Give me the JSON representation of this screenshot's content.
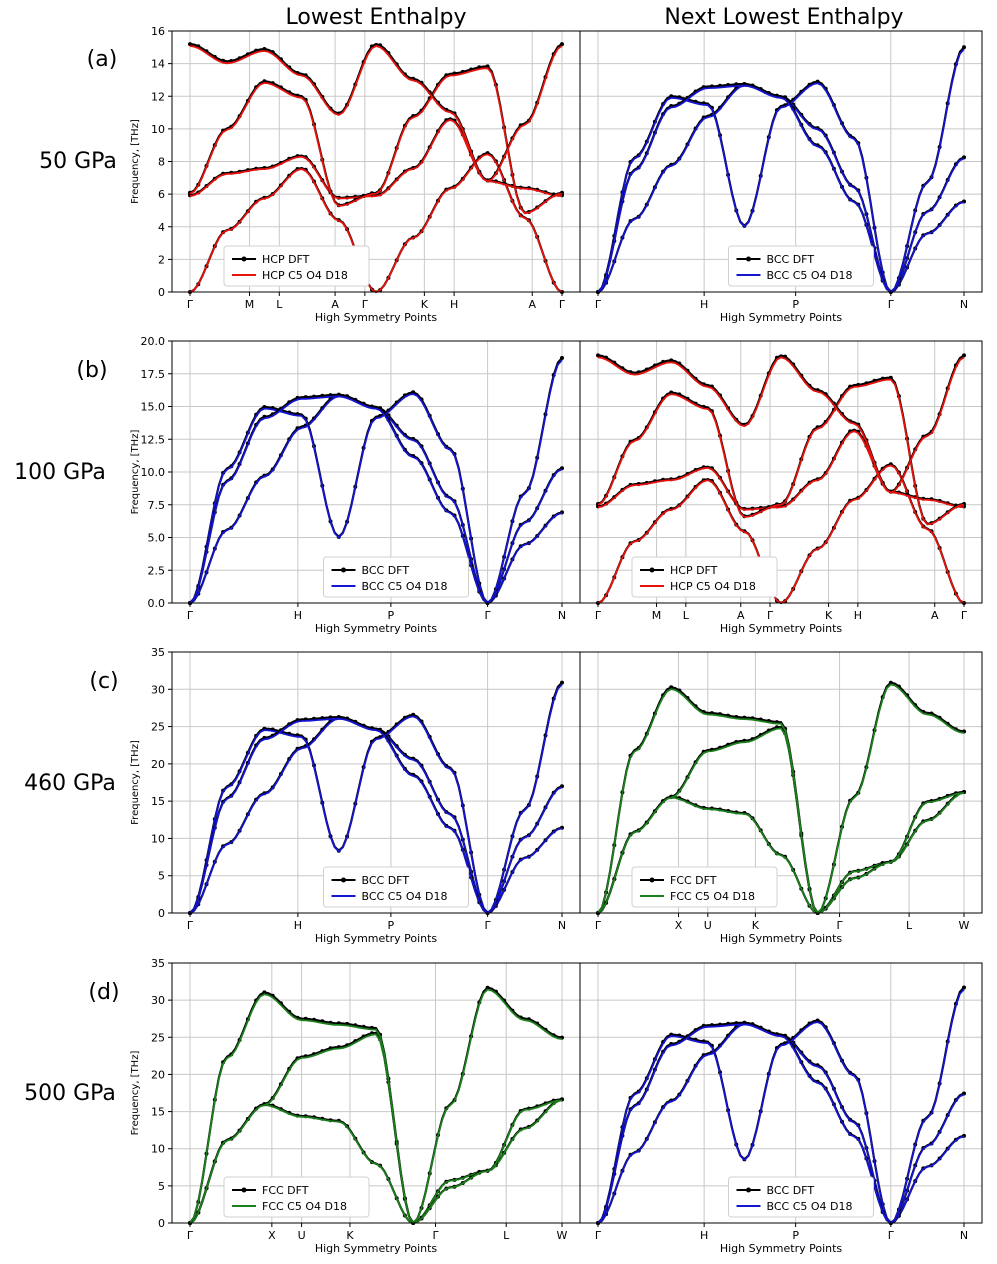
{
  "column_titles": [
    "Lowest Enthalpy",
    "Next Lowest Enthalpy"
  ],
  "rows": [
    {
      "label": "(a)",
      "pressure": "50 GPa"
    },
    {
      "label": "(b)",
      "pressure": "100 GPa"
    },
    {
      "label": "(c)",
      "pressure": "460 GPa"
    },
    {
      "label": "(d)",
      "pressure": "500 GPa"
    }
  ],
  "colors": {
    "HCP": "#e8120c",
    "BCC": "#1414d2",
    "FCC": "#1b7f1b",
    "DFT": "#000000"
  },
  "chart_data": [
    {
      "type": "line",
      "row": 0,
      "col": 0,
      "structure": "HCP",
      "xlabel": "High Symmetry Points",
      "ylabel": "Frequency, [THz]",
      "ylim": [
        0,
        16
      ],
      "yticks": [
        0,
        2,
        4,
        6,
        8,
        10,
        12,
        14,
        16
      ],
      "kpoints": [
        "Γ",
        "M",
        "L",
        "A",
        "Γ",
        "K",
        "H",
        "A",
        "Γ"
      ],
      "kpos": [
        0,
        0.16,
        0.24,
        0.39,
        0.47,
        0.63,
        0.71,
        0.92,
        1.0
      ],
      "legend": [
        "HCP DFT",
        "HCP C5 O4 D18"
      ],
      "legend_loc": "lower-left",
      "branch_shape": "HCP",
      "max_freq": 15.2
    },
    {
      "type": "line",
      "row": 0,
      "col": 1,
      "structure": "BCC",
      "xlabel": "High Symmetry Points",
      "ylabel": "",
      "ylim": [
        0,
        16
      ],
      "yticks": [],
      "kpoints": [
        "Γ",
        "H",
        "P",
        "Γ",
        "N"
      ],
      "kpos": [
        0,
        0.29,
        0.54,
        0.8,
        1.0
      ],
      "legend": [
        "BCC DFT",
        "BCC C5 O4 D18"
      ],
      "legend_loc": "lower-center",
      "branch_shape": "BCC",
      "max_freq": 15.0
    },
    {
      "type": "line",
      "row": 1,
      "col": 0,
      "structure": "BCC",
      "xlabel": "High Symmetry Points",
      "ylabel": "Frequency, [THz]",
      "ylim": [
        0,
        20
      ],
      "yticks": [
        0.0,
        2.5,
        5.0,
        7.5,
        10.0,
        12.5,
        15.0,
        17.5,
        20.0
      ],
      "kpoints": [
        "Γ",
        "H",
        "P",
        "Γ",
        "N"
      ],
      "kpos": [
        0,
        0.29,
        0.54,
        0.8,
        1.0
      ],
      "legend": [
        "BCC DFT",
        "BCC C5 O4 D18"
      ],
      "legend_loc": "lower-center",
      "branch_shape": "BCC",
      "max_freq": 18.7
    },
    {
      "type": "line",
      "row": 1,
      "col": 1,
      "structure": "HCP",
      "xlabel": "High Symmetry Points",
      "ylabel": "",
      "ylim": [
        0,
        20
      ],
      "yticks": [],
      "kpoints": [
        "Γ",
        "M",
        "L",
        "A",
        "Γ",
        "K",
        "H",
        "A",
        "Γ"
      ],
      "kpos": [
        0,
        0.16,
        0.24,
        0.39,
        0.47,
        0.63,
        0.71,
        0.92,
        1.0
      ],
      "legend": [
        "HCP DFT",
        "HCP C5 O4 D18"
      ],
      "legend_loc": "lower-left",
      "branch_shape": "HCP",
      "max_freq": 18.9
    },
    {
      "type": "line",
      "row": 2,
      "col": 0,
      "structure": "BCC",
      "xlabel": "High Symmetry Points",
      "ylabel": "Frequency, [THz]",
      "ylim": [
        0,
        35
      ],
      "yticks": [
        0,
        5,
        10,
        15,
        20,
        25,
        30,
        35
      ],
      "kpoints": [
        "Γ",
        "H",
        "P",
        "Γ",
        "N"
      ],
      "kpos": [
        0,
        0.29,
        0.54,
        0.8,
        1.0
      ],
      "legend": [
        "BCC DFT",
        "BCC C5 O4 D18"
      ],
      "legend_loc": "lower-center",
      "branch_shape": "BCC",
      "max_freq": 30.9
    },
    {
      "type": "line",
      "row": 2,
      "col": 1,
      "structure": "FCC",
      "xlabel": "High Symmetry Points",
      "ylabel": "",
      "ylim": [
        0,
        35
      ],
      "yticks": [],
      "kpoints": [
        "Γ",
        "X",
        "U",
        "K",
        "Γ",
        "L",
        "W"
      ],
      "kpos": [
        0,
        0.22,
        0.3,
        0.43,
        0.66,
        0.85,
        1.0
      ],
      "legend": [
        "FCC DFT",
        "FCC C5 O4 D18"
      ],
      "legend_loc": "lower-left",
      "branch_shape": "FCC",
      "max_freq": 31.2
    },
    {
      "type": "line",
      "row": 3,
      "col": 0,
      "structure": "FCC",
      "xlabel": "High Symmetry Points",
      "ylabel": "Frequency, [THz]",
      "ylim": [
        0,
        35
      ],
      "yticks": [
        0,
        5,
        10,
        15,
        20,
        25,
        30,
        35
      ],
      "kpoints": [
        "Γ",
        "X",
        "U",
        "K",
        "Γ",
        "L",
        "W"
      ],
      "kpos": [
        0,
        0.22,
        0.3,
        0.43,
        0.66,
        0.85,
        1.0
      ],
      "legend": [
        "FCC DFT",
        "FCC C5 O4 D18"
      ],
      "legend_loc": "lower-left",
      "branch_shape": "FCC",
      "max_freq": 32.0
    },
    {
      "type": "line",
      "row": 3,
      "col": 1,
      "structure": "BCC",
      "xlabel": "High Symmetry Points",
      "ylabel": "",
      "ylim": [
        0,
        35
      ],
      "yticks": [],
      "kpoints": [
        "Γ",
        "H",
        "P",
        "Γ",
        "N"
      ],
      "kpos": [
        0,
        0.29,
        0.54,
        0.8,
        1.0
      ],
      "legend": [
        "BCC DFT",
        "BCC C5 O4 D18"
      ],
      "legend_loc": "lower-center",
      "branch_shape": "BCC",
      "max_freq": 31.7
    }
  ],
  "branch_shapes": {
    "BCC": [
      [
        0,
        0.3,
        0.52,
        0.72,
        0.85,
        0.8,
        0.67,
        0.43,
        0,
        0.24,
        0.37
      ],
      [
        0,
        0.55,
        0.8,
        0.77,
        0.27,
        0.76,
        0.86,
        0.63,
        0,
        0.33,
        0.55
      ],
      [
        0,
        0.5,
        0.76,
        0.84,
        0.85,
        0.8,
        0.6,
        0.37,
        0,
        0.45,
        1.0
      ]
    ],
    "HCP": [
      [
        0,
        0.25,
        0.38,
        0.5,
        0.29,
        0,
        0.22,
        0.42,
        0.56,
        0.3,
        0
      ],
      [
        0.39,
        0.48,
        0.5,
        0.55,
        0.38,
        0.39,
        0.5,
        0.7,
        0.45,
        0.42,
        0.39
      ],
      [
        0.4,
        0.66,
        0.85,
        0.79,
        0.35,
        0.4,
        0.71,
        0.88,
        0.91,
        0.32,
        0.4
      ],
      [
        1.0,
        0.93,
        0.98,
        0.88,
        0.72,
        1.0,
        0.86,
        0.73,
        0.45,
        0.68,
        1.0
      ]
    ],
    "FCC": [
      [
        0,
        0.35,
        0.5,
        0.45,
        0.43,
        0.25,
        0,
        0.18,
        0.22,
        0.4,
        0.52
      ],
      [
        0,
        0.35,
        0.5,
        0.7,
        0.74,
        0.8,
        0,
        0.15,
        0.22,
        0.48,
        0.52
      ],
      [
        0,
        0.7,
        0.97,
        0.86,
        0.84,
        0.82,
        0,
        0.5,
        0.99,
        0.86,
        0.78
      ]
    ]
  }
}
